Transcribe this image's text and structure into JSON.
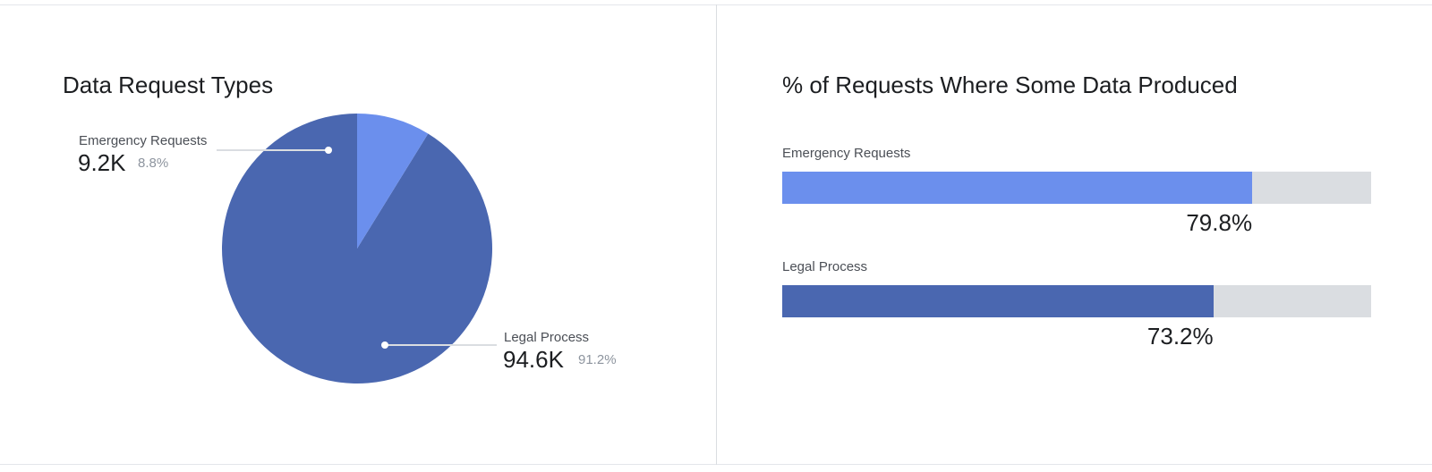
{
  "chart_data": [
    {
      "type": "pie",
      "title": "Data Request Types",
      "slices": [
        {
          "name": "Emergency Requests",
          "value_label": "9.2K",
          "value": 9200,
          "percent_label": "8.8%",
          "percent": 8.8,
          "color": "#6b8fed"
        },
        {
          "name": "Legal Process",
          "value_label": "94.6K",
          "value": 94600,
          "percent_label": "91.2%",
          "percent": 91.2,
          "color": "#4a67b0"
        }
      ]
    },
    {
      "type": "bar",
      "orientation": "horizontal",
      "title": "% of Requests Where Some Data Produced",
      "categories": [
        "Emergency Requests",
        "Legal Process"
      ],
      "values": [
        79.8,
        73.2
      ],
      "value_labels": [
        "79.8%",
        "73.2%"
      ],
      "colors": [
        "#6b8fed",
        "#4a67b0"
      ],
      "track_color": "#dadde1",
      "xlim": [
        0,
        100
      ]
    }
  ]
}
